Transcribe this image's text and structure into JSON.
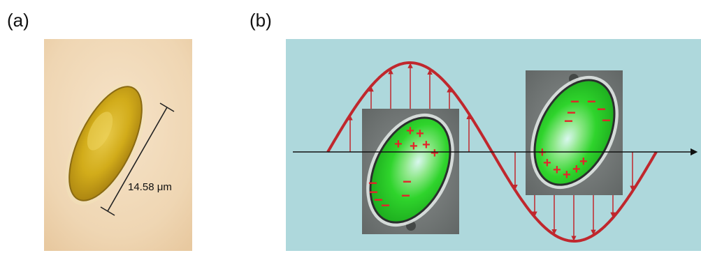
{
  "panels": {
    "a": {
      "label": "(a)",
      "scale_text": "14.58 μm"
    },
    "b": {
      "label": "(b)",
      "cell_left": {
        "plus_count": 6,
        "minus_count": 6
      },
      "cell_right": {
        "plus_count": 6,
        "minus_count": 6
      }
    }
  },
  "symbols": {
    "plus": "+",
    "minus": "−"
  },
  "colors": {
    "background_b": "#aed8dc",
    "wave": "#c0272d",
    "cell_green": "#27d22a",
    "photo_bg": "#f3dcbf",
    "cell_yellow": "#d6b21c"
  }
}
